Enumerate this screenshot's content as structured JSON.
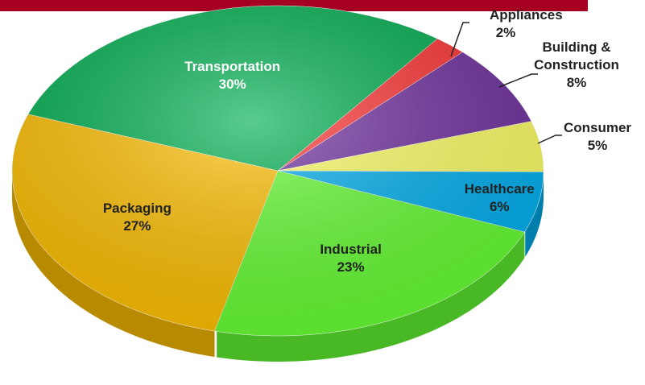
{
  "chart_data": {
    "type": "pie",
    "categories": [
      "Transportation",
      "Appliances",
      "Building & Construction",
      "Consumer",
      "Healthcare",
      "Industrial",
      "Packaging"
    ],
    "values": [
      30,
      2,
      8,
      5,
      6,
      23,
      27
    ],
    "value_labels": [
      "30%",
      "2%",
      "8%",
      "5%",
      "6%",
      "23%",
      "27%"
    ],
    "colors": [
      "#00b050",
      "#ff3333",
      "#7030a0",
      "#ffff66",
      "#00b0f0",
      "#66ff33",
      "#ffc000"
    ]
  }
}
